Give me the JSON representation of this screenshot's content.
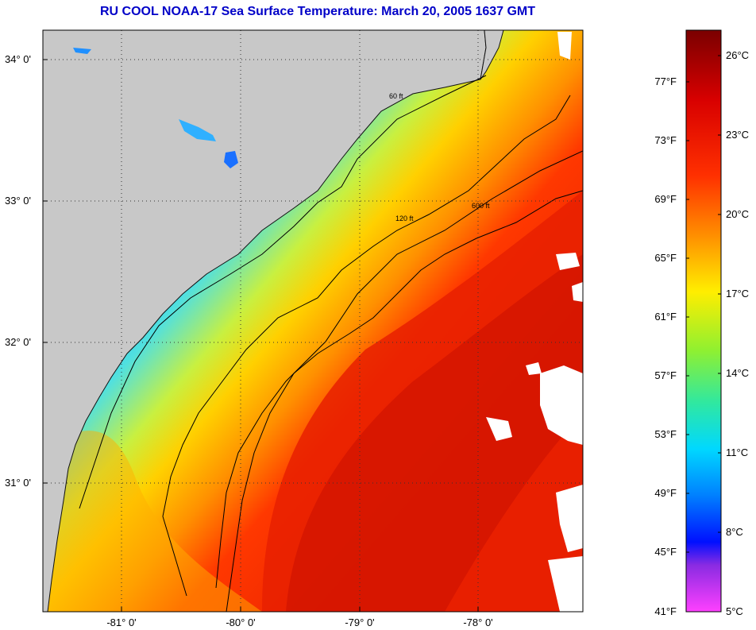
{
  "title": "RU COOL  NOAA-17  Sea Surface Temperature:  March 20, 2005 1637 GMT",
  "latitude_labels": [
    "34° 0'",
    "33° 0'",
    "32° 0'",
    "31° 0'"
  ],
  "longitude_labels": [
    "-81° 0'",
    "-80° 0'",
    "-79° 0'",
    "-78° 0'"
  ],
  "colorbar": {
    "fahrenheit_labels": [
      "77°F",
      "73°F",
      "69°F",
      "65°F",
      "61°F",
      "57°F",
      "53°F",
      "49°F",
      "45°F",
      "41°F"
    ],
    "celsius_labels": [
      "26°C",
      "23°C",
      "20°C",
      "17°C",
      "14°C",
      "11°C",
      "8°C",
      "5°C"
    ],
    "range_celsius": [
      5,
      27
    ],
    "colors": {
      "warmest": "#7a0000",
      "red": "#ff1a00",
      "orange": "#ff8c00",
      "yellow": "#ffee00",
      "green": "#40e060",
      "cyan": "#00e8ff",
      "blue": "#0030ff",
      "purple": "#8a2be2",
      "coldest": "#ff40ff"
    }
  },
  "land_color": "#c8c8c8",
  "contour_labels": [
    "60 ft",
    "120 ft",
    "600 ft"
  ]
}
